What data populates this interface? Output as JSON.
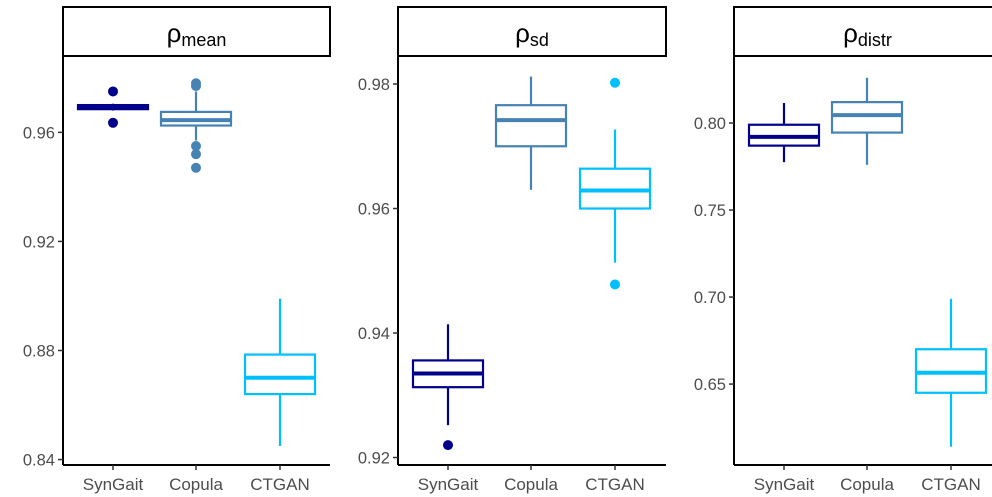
{
  "chart_data": [
    {
      "type": "box",
      "title": "ρ",
      "title_sub": "mean",
      "categories": [
        "SynGait",
        "Copula",
        "CTGAN"
      ],
      "ylim": [
        0.838,
        0.988
      ],
      "yticks": [
        0.84,
        0.88,
        0.92,
        0.96
      ],
      "ytick_labels": [
        "0.84",
        "0.88",
        "0.92",
        "0.96"
      ],
      "colors": [
        "#00008B",
        "#4682B4",
        "#00BFFF"
      ],
      "boxes": [
        {
          "name": "SynGait",
          "whisker_low": 0.968,
          "q1": 0.9685,
          "median": 0.9695,
          "q3": 0.97,
          "whisker_high": 0.9705,
          "outliers": [
            0.975,
            0.9635
          ]
        },
        {
          "name": "Copula",
          "whisker_low": 0.957,
          "q1": 0.9625,
          "median": 0.9645,
          "q3": 0.9675,
          "whisker_high": 0.975,
          "outliers": [
            0.978,
            0.977,
            0.955,
            0.952,
            0.947
          ]
        },
        {
          "name": "CTGAN",
          "whisker_low": 0.845,
          "q1": 0.864,
          "median": 0.87,
          "q3": 0.8785,
          "whisker_high": 0.899,
          "outliers": []
        }
      ]
    },
    {
      "type": "box",
      "title": "ρ",
      "title_sub": "sd",
      "categories": [
        "SynGait",
        "Copula",
        "CTGAN"
      ],
      "ylim": [
        0.9188,
        0.9845
      ],
      "yticks": [
        0.92,
        0.94,
        0.96,
        0.98
      ],
      "ytick_labels": [
        "0.92",
        "0.94",
        "0.96",
        "0.98"
      ],
      "colors": [
        "#00008B",
        "#4682B4",
        "#00BFFF"
      ],
      "boxes": [
        {
          "name": "SynGait",
          "whisker_low": 0.9252,
          "q1": 0.9313,
          "median": 0.9335,
          "q3": 0.9356,
          "whisker_high": 0.9414,
          "outliers": [
            0.922
          ]
        },
        {
          "name": "Copula",
          "whisker_low": 0.963,
          "q1": 0.97,
          "median": 0.9742,
          "q3": 0.9766,
          "whisker_high": 0.9812,
          "outliers": []
        },
        {
          "name": "CTGAN",
          "whisker_low": 0.9513,
          "q1": 0.96,
          "median": 0.9629,
          "q3": 0.9664,
          "whisker_high": 0.9727,
          "outliers": [
            0.9802,
            0.9478
          ]
        }
      ]
    },
    {
      "type": "box",
      "title": "ρ",
      "title_sub": "distr",
      "categories": [
        "SynGait",
        "Copula",
        "CTGAN"
      ],
      "ylim": [
        0.6035,
        0.8385
      ],
      "yticks": [
        0.65,
        0.7,
        0.75,
        0.8
      ],
      "ytick_labels": [
        "0.65",
        "0.70",
        "0.75",
        "0.80"
      ],
      "colors": [
        "#00008B",
        "#4682B4",
        "#00BFFF"
      ],
      "boxes": [
        {
          "name": "SynGait",
          "whisker_low": 0.7775,
          "q1": 0.787,
          "median": 0.792,
          "q3": 0.799,
          "whisker_high": 0.8115,
          "outliers": []
        },
        {
          "name": "Copula",
          "whisker_low": 0.776,
          "q1": 0.7945,
          "median": 0.8045,
          "q3": 0.812,
          "whisker_high": 0.826,
          "outliers": []
        },
        {
          "name": "CTGAN",
          "whisker_low": 0.614,
          "q1": 0.645,
          "median": 0.6565,
          "q3": 0.67,
          "whisker_high": 0.699,
          "outliers": []
        }
      ]
    }
  ]
}
